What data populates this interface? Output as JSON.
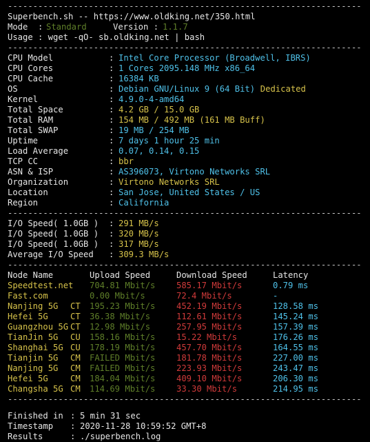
{
  "divider": "----------------------------------------------------------------------",
  "header": {
    "line1": "Superbench.sh -- https://www.oldking.net/350.html",
    "mode_label": "Mode",
    "mode_sep": ":",
    "mode_value": "Standard",
    "version_label": "Version :",
    "version_value": "1.1.7",
    "usage_label": "Usage",
    "usage_value": ": wget -qO- sb.oldking.net | bash"
  },
  "system_info": [
    {
      "label": "CPU Model",
      "value": "Intel Core Processor (Broadwell, IBRS)",
      "color": "cyan"
    },
    {
      "label": "CPU Cores",
      "value": "1 Cores 2095.148 MHz x86_64",
      "color": "cyan"
    },
    {
      "label": "CPU Cache",
      "value": "16384 KB",
      "color": "cyan"
    },
    {
      "label": "OS",
      "value": "Debian GNU/Linux 9 (64 Bit) Dedicated",
      "color": "cyan",
      "value_suffix": "Dedicated",
      "value_main": "Debian GNU/Linux 9 (64 Bit) "
    },
    {
      "label": "Kernel",
      "value": "4.9.0-4-amd64",
      "color": "cyan"
    },
    {
      "label": "Total Space",
      "value": "4.2 GB / 15.0 GB",
      "color": "yellow"
    },
    {
      "label": "Total RAM",
      "value": "154 MB / 492 MB (161 MB Buff)",
      "color": "yellow"
    },
    {
      "label": "Total SWAP",
      "value": "19 MB / 254 MB",
      "color": "cyan"
    },
    {
      "label": "Uptime",
      "value": "7 days 1 hour 25 min",
      "color": "cyan"
    },
    {
      "label": "Load Average",
      "value": "0.07, 0.14, 0.15",
      "color": "cyan"
    },
    {
      "label": "TCP CC",
      "value": "bbr",
      "color": "yellow"
    },
    {
      "label": "ASN & ISP",
      "value": "AS396073, Virtono Networks SRL",
      "color": "cyan"
    },
    {
      "label": "Organization",
      "value": "Virtono Networks SRL",
      "color": "yellow"
    },
    {
      "label": "Location",
      "value": "San Jose, United States / US",
      "color": "cyan"
    },
    {
      "label": "Region",
      "value": "California",
      "color": "cyan"
    }
  ],
  "info_sep": ":",
  "io": [
    {
      "label": "I/O Speed( 1.0GB )",
      "value": "291 MB/s"
    },
    {
      "label": "I/O Speed( 1.0GB )",
      "value": "320 MB/s"
    },
    {
      "label": "I/O Speed( 1.0GB )",
      "value": "317 MB/s"
    },
    {
      "label": "Average I/O Speed",
      "value": "309.3 MB/s"
    }
  ],
  "speedtest": {
    "headers": {
      "node": "Node Name",
      "upload": "Upload Speed",
      "download": "Download Speed",
      "latency": "Latency"
    },
    "rows": [
      {
        "node": "Speedtest.net",
        "isp": "",
        "upload": "704.81 Mbit/s",
        "download": "585.17 Mbit/s",
        "latency": "0.79 ms",
        "node_color": "yellow"
      },
      {
        "node": "Fast.com",
        "isp": "",
        "upload": "0.00 Mbit/s",
        "download": "72.4 Mbit/s",
        "latency": "-",
        "node_color": "yellow"
      },
      {
        "node": "Nanjing 5G",
        "isp": "CT",
        "upload": "195.23 Mbit/s",
        "download": "452.19 Mbit/s",
        "latency": "128.58 ms",
        "node_color": "yellow"
      },
      {
        "node": "Hefei 5G",
        "isp": "CT",
        "upload": "36.38 Mbit/s",
        "download": "112.61 Mbit/s",
        "latency": "145.24 ms",
        "node_color": "yellow"
      },
      {
        "node": "Guangzhou 5G",
        "isp": "CT",
        "upload": "12.98 Mbit/s",
        "download": "257.95 Mbit/s",
        "latency": "157.39 ms",
        "node_color": "yellow"
      },
      {
        "node": "TianJin 5G",
        "isp": "CU",
        "upload": "158.16 Mbit/s",
        "download": "15.22 Mbit/s",
        "latency": "176.26 ms",
        "node_color": "yellow"
      },
      {
        "node": "Shanghai 5G",
        "isp": "CU",
        "upload": "178.19 Mbit/s",
        "download": "457.70 Mbit/s",
        "latency": "164.55 ms",
        "node_color": "yellow"
      },
      {
        "node": "Tianjin 5G",
        "isp": "CM",
        "upload": "FAILED Mbit/s",
        "download": "181.78 Mbit/s",
        "latency": "227.00 ms",
        "node_color": "yellow"
      },
      {
        "node": "Nanjing 5G",
        "isp": "CM",
        "upload": "FAILED Mbit/s",
        "download": "223.93 Mbit/s",
        "latency": "243.47 ms",
        "node_color": "yellow"
      },
      {
        "node": "Hefei 5G",
        "isp": "CM",
        "upload": "184.04 Mbit/s",
        "download": "409.10 Mbit/s",
        "latency": "206.30 ms",
        "node_color": "yellow"
      },
      {
        "node": "Changsha 5G",
        "isp": "CM",
        "upload": "114.69 Mbit/s",
        "download": "33.30 Mbit/s",
        "latency": "214.95 ms",
        "node_color": "yellow"
      }
    ]
  },
  "footer": [
    {
      "label": "Finished in",
      "value": "5 min 31 sec"
    },
    {
      "label": "Timestamp",
      "value": "2020-11-28 10:59:52 GMT+8"
    },
    {
      "label": "Results",
      "value": "./superbench.log"
    }
  ],
  "colors": {
    "background": "#000000",
    "text": "#e6e6e6",
    "cyan": "#4fc1e9",
    "yellow": "#d6c24a",
    "green": "#3fa23f",
    "red": "#d03a3a",
    "upload_green": "#5f7f29"
  }
}
